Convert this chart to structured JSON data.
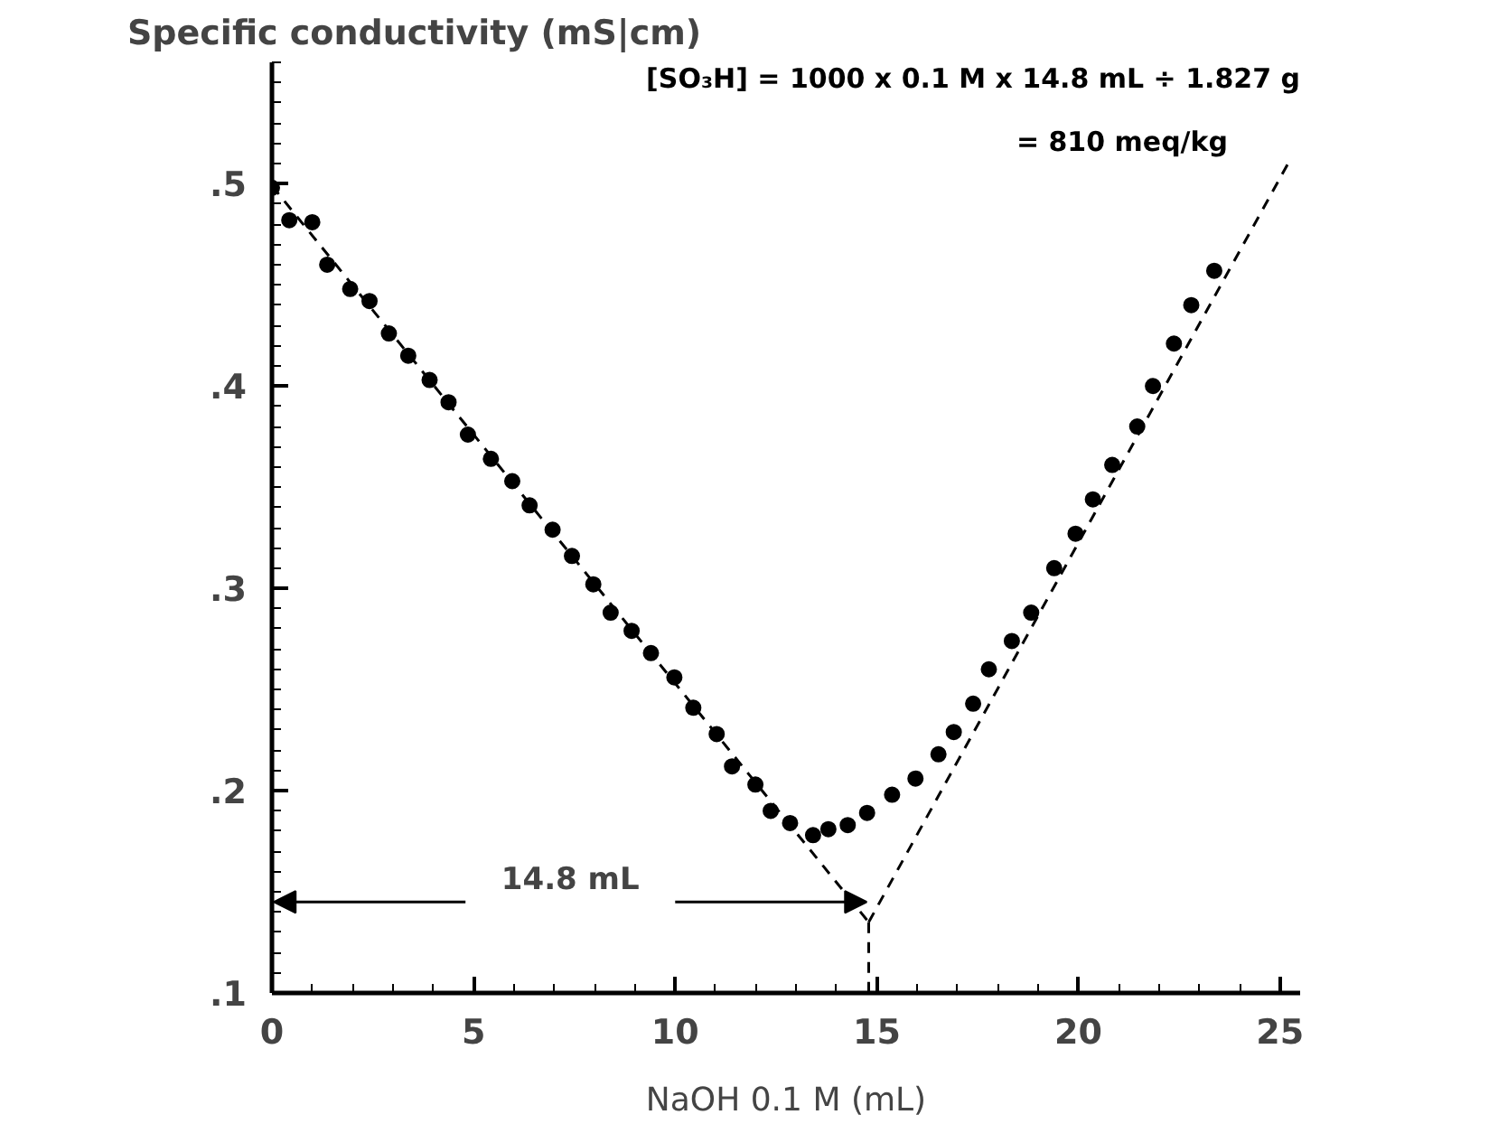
{
  "chart_data": {
    "type": "scatter",
    "ylabel": "Specific conductivity (mS|cm)",
    "xlabel": "NaOH 0.1 M (mL)",
    "xlim": [
      0,
      25.5
    ],
    "ylim": [
      0.1,
      0.56
    ],
    "xticks": [
      0,
      5,
      10,
      15,
      20,
      25
    ],
    "yticks": [
      {
        "value": 0.1,
        "label": ".1"
      },
      {
        "value": 0.2,
        "label": ".2"
      },
      {
        "value": 0.3,
        "label": ".3"
      },
      {
        "value": 0.4,
        "label": ".4"
      },
      {
        "value": 0.5,
        "label": ".5"
      }
    ],
    "marker": "circle",
    "grid": false,
    "series": [
      {
        "color": "#000000",
        "x": [
          0,
          0.43,
          1.0,
          1.37,
          1.94,
          2.42,
          2.9,
          3.38,
          3.91,
          4.38,
          4.86,
          5.43,
          5.96,
          6.39,
          6.96,
          7.44,
          7.97,
          8.4,
          8.92,
          9.4,
          9.98,
          10.45,
          11.03,
          11.41,
          11.99,
          12.37,
          12.85,
          13.42,
          13.8,
          14.28,
          14.76,
          15.38,
          15.96,
          16.53,
          16.91,
          17.39,
          17.78,
          18.35,
          18.83,
          19.4,
          19.93,
          20.36,
          20.84,
          21.46,
          21.85,
          22.37,
          22.8,
          23.37
        ],
        "values": [
          0.498,
          0.482,
          0.481,
          0.46,
          0.448,
          0.442,
          0.426,
          0.415,
          0.403,
          0.392,
          0.376,
          0.364,
          0.353,
          0.341,
          0.329,
          0.316,
          0.302,
          0.288,
          0.279,
          0.268,
          0.256,
          0.241,
          0.228,
          0.212,
          0.203,
          0.19,
          0.184,
          0.178,
          0.181,
          0.183,
          0.189,
          0.198,
          0.206,
          0.218,
          0.229,
          0.243,
          0.26,
          0.274,
          0.288,
          0.31,
          0.327,
          0.344,
          0.361,
          0.38,
          0.4,
          0.421,
          0.44,
          0.457
        ]
      },
      {
        "type": "line",
        "color": "#000000",
        "line_style": "dashed",
        "marker": "none",
        "x": [
          0,
          14.8
        ],
        "values": [
          0.499,
          0.135
        ]
      },
      {
        "type": "line",
        "color": "#000000",
        "line_style": "dashed",
        "marker": "none",
        "x": [
          14.8,
          25.2
        ],
        "values": [
          0.135,
          0.51
        ]
      },
      {
        "type": "line",
        "color": "#000000",
        "line_style": "dashed",
        "marker": "none",
        "x": [
          14.8,
          14.8
        ],
        "values": [
          0.135,
          0.1
        ]
      }
    ],
    "annotations": [
      {
        "text": "14.8 mL",
        "x": 14.8,
        "y": 0.145
      },
      "[SO₃H] = 1000 x 0.1 M x 14.8 mL ÷ 1.827 g",
      "= 810 meq/kg"
    ]
  }
}
